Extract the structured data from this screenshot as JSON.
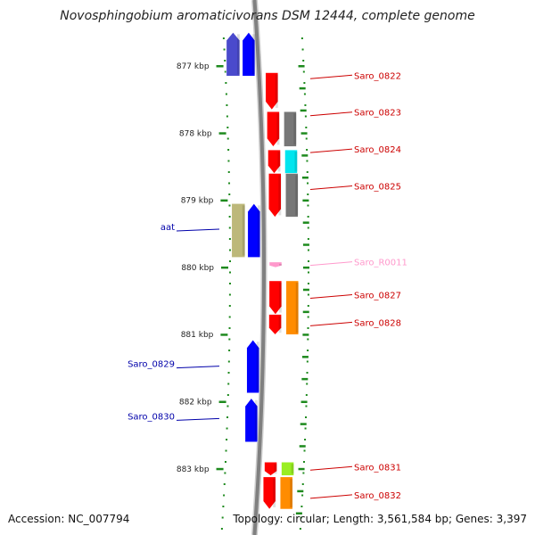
{
  "title": "Novosphingobium aromaticivorans DSM 12444, complete genome",
  "footer": {
    "accession": "Accession: NC_007794",
    "summary": "Topology: circular; Length: 3,561,584 bp; Genes: 3,397"
  },
  "colors": {
    "backbone": "#808080",
    "tick": "#1e8a1e",
    "label_red": "#cc0000",
    "label_blue": "#0000aa",
    "label_pink": "#ff99cc"
  },
  "scale": {
    "unit": "kbp",
    "ticks": [
      877,
      878,
      879,
      880,
      881,
      882,
      883
    ],
    "tick_labels": [
      "877 kbp",
      "878 kbp",
      "879 kbp",
      "880 kbp",
      "881 kbp",
      "882 kbp",
      "883 kbp"
    ]
  },
  "features": [
    {
      "name": "bar-blue-1",
      "lane": "blue",
      "color": "#0000ff",
      "start": 876.5,
      "end": 877.15,
      "strand": "+"
    },
    {
      "name": "bar-blue-2",
      "lane": "grey",
      "color": "#4a4acc",
      "start": 876.5,
      "end": 877.15,
      "strand": "+"
    },
    {
      "name": "Saro_0822-cds",
      "lane": "inner_red",
      "color": "#ff0000",
      "start": 877.1,
      "end": 877.65,
      "strand": "-"
    },
    {
      "name": "Saro_0823-cds",
      "lane": "inner_red",
      "color": "#ff0000",
      "start": 877.68,
      "end": 878.2,
      "strand": "-"
    },
    {
      "name": "Saro_0823-gene",
      "lane": "outer",
      "color": "#777777",
      "start": 877.68,
      "end": 878.2,
      "strand": "0"
    },
    {
      "name": "Saro_0824-cds",
      "lane": "inner_red",
      "color": "#ff0000",
      "start": 878.25,
      "end": 878.6,
      "strand": "-"
    },
    {
      "name": "Saro_0824-gene",
      "lane": "outer",
      "color": "#00e5ee",
      "start": 878.25,
      "end": 878.6,
      "strand": "0"
    },
    {
      "name": "Saro_0825-cds",
      "lane": "inner_red",
      "color": "#ff0000",
      "start": 878.6,
      "end": 879.25,
      "strand": "-"
    },
    {
      "name": "Saro_0825-gene",
      "lane": "outer",
      "color": "#777777",
      "start": 878.6,
      "end": 879.25,
      "strand": "0"
    },
    {
      "name": "aat-gene",
      "lane": "grey",
      "color": "#bdb87a",
      "start": 879.05,
      "end": 879.85,
      "strand": "0"
    },
    {
      "name": "aat-cds",
      "lane": "blue",
      "color": "#0000ff",
      "start": 879.05,
      "end": 879.85,
      "strand": "+"
    },
    {
      "name": "Saro_R0011-gene",
      "lane": "inner_red",
      "color": "#ff99cc",
      "start": 879.92,
      "end": 880.0,
      "strand": "-"
    },
    {
      "name": "Saro_0827-cds",
      "lane": "inner_red",
      "color": "#ff0000",
      "start": 880.2,
      "end": 880.7,
      "strand": "-"
    },
    {
      "name": "Saro_0827-gene",
      "lane": "outer",
      "color": "#ff8c00",
      "start": 880.2,
      "end": 881.0,
      "strand": "0"
    },
    {
      "name": "Saro_0828-cds",
      "lane": "inner_red",
      "color": "#ff0000",
      "start": 880.7,
      "end": 881.0,
      "strand": "-"
    },
    {
      "name": "Saro_0829-cds",
      "lane": "blue",
      "color": "#0000ff",
      "start": 881.08,
      "end": 881.87,
      "strand": "+"
    },
    {
      "name": "Saro_0830-cds",
      "lane": "blue",
      "color": "#0000ff",
      "start": 881.95,
      "end": 882.6,
      "strand": "+"
    },
    {
      "name": "Saro_0831-cds",
      "lane": "inner_red",
      "color": "#ff0000",
      "start": 882.9,
      "end": 883.1,
      "strand": "-"
    },
    {
      "name": "Saro_0831-gene",
      "lane": "outer",
      "color": "#99ee22",
      "start": 882.9,
      "end": 883.1,
      "strand": "0"
    },
    {
      "name": "Saro_0832-cds",
      "lane": "inner_red",
      "color": "#ff0000",
      "start": 883.12,
      "end": 883.6,
      "strand": "-"
    },
    {
      "name": "Saro_0832-gene",
      "lane": "outer",
      "color": "#ff8c00",
      "start": 883.12,
      "end": 883.6,
      "strand": "0"
    }
  ],
  "labels": [
    {
      "text": "Saro_0822",
      "side": "right",
      "color": "#cc0000",
      "pos": 877.15
    },
    {
      "text": "Saro_0823",
      "side": "right",
      "color": "#cc0000",
      "pos": 877.7
    },
    {
      "text": "Saro_0824",
      "side": "right",
      "color": "#cc0000",
      "pos": 878.25
    },
    {
      "text": "Saro_0825",
      "side": "right",
      "color": "#cc0000",
      "pos": 878.8
    },
    {
      "text": "aat",
      "side": "left",
      "color": "#0000aa",
      "pos": 879.43
    },
    {
      "text": "Saro_R0011",
      "side": "right",
      "color": "#ff99cc",
      "pos": 879.93
    },
    {
      "text": "Saro_0827",
      "side": "right",
      "color": "#cc0000",
      "pos": 880.42
    },
    {
      "text": "Saro_0828",
      "side": "right",
      "color": "#cc0000",
      "pos": 880.83
    },
    {
      "text": "Saro_0829",
      "side": "left",
      "color": "#0000aa",
      "pos": 881.47
    },
    {
      "text": "Saro_0830",
      "side": "left",
      "color": "#0000aa",
      "pos": 882.25
    },
    {
      "text": "Saro_0831",
      "side": "right",
      "color": "#cc0000",
      "pos": 882.98
    },
    {
      "text": "Saro_0832",
      "side": "right",
      "color": "#cc0000",
      "pos": 883.4
    }
  ]
}
